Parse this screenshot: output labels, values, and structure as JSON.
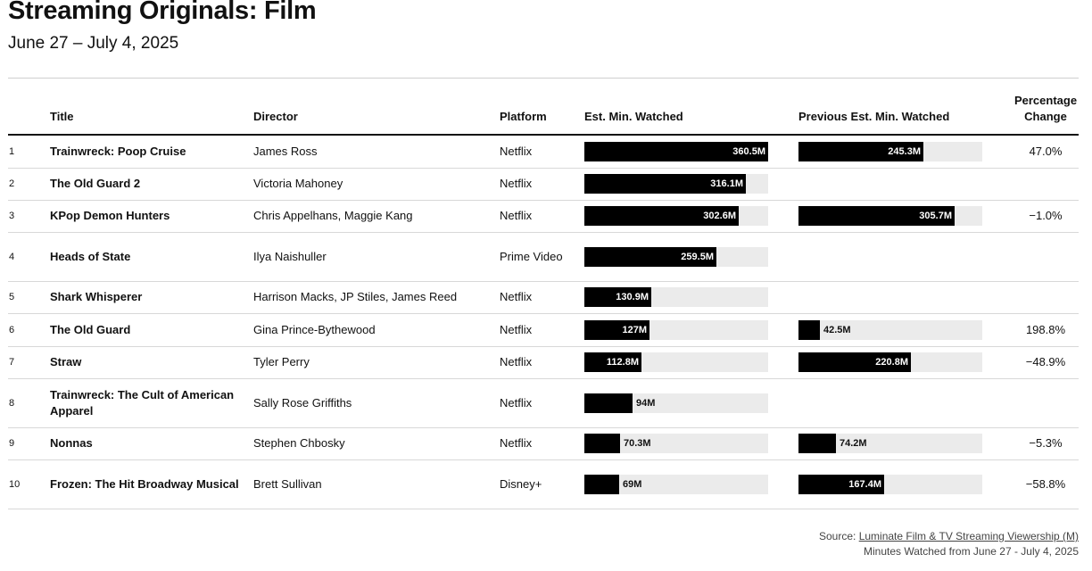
{
  "header": {
    "title": "Streaming Originals: Film",
    "subtitle": "June 27 – July 4, 2025"
  },
  "columns": {
    "title": "Title",
    "director": "Director",
    "platform": "Platform",
    "est": "Est. Min. Watched",
    "prev": "Previous Est. Min. Watched",
    "pct_line1": "Percentage",
    "pct_line2": "Change"
  },
  "footer": {
    "source_prefix": "Source: ",
    "source_link": "Luminate Film & TV Streaming Viewership (M)",
    "note": "Minutes Watched from June 27 - July 4, 2025"
  },
  "chart_data": {
    "type": "table",
    "bar_max": 360.5,
    "colors": {
      "bar": "#000000",
      "track": "#ebebeb"
    },
    "rows": [
      {
        "rank": "1",
        "title": "Trainwreck: Poop Cruise",
        "director": "James Ross",
        "platform": "Netflix",
        "est": 360.5,
        "est_label": "360.5M",
        "prev": 245.3,
        "prev_label": "245.3M",
        "pct": "47.0%"
      },
      {
        "rank": "2",
        "title": "The Old Guard 2",
        "director": "Victoria Mahoney",
        "platform": "Netflix",
        "est": 316.1,
        "est_label": "316.1M",
        "prev": null,
        "prev_label": "",
        "pct": ""
      },
      {
        "rank": "3",
        "title": "KPop Demon Hunters",
        "director": "Chris Appelhans, Maggie Kang",
        "platform": "Netflix",
        "est": 302.6,
        "est_label": "302.6M",
        "prev": 305.7,
        "prev_label": "305.7M",
        "pct": "−1.0%"
      },
      {
        "rank": "4",
        "title": "Heads of State",
        "director": "Ilya Naishuller",
        "platform": "Prime Video",
        "est": 259.5,
        "est_label": "259.5M",
        "prev": null,
        "prev_label": "",
        "pct": ""
      },
      {
        "rank": "5",
        "title": "Shark Whisperer",
        "director": "Harrison Macks, JP Stiles, James Reed",
        "platform": "Netflix",
        "est": 130.9,
        "est_label": "130.9M",
        "prev": null,
        "prev_label": "",
        "pct": ""
      },
      {
        "rank": "6",
        "title": "The Old Guard",
        "director": "Gina Prince-Bythewood",
        "platform": "Netflix",
        "est": 127,
        "est_label": "127M",
        "prev": 42.5,
        "prev_label": "42.5M",
        "pct": "198.8%"
      },
      {
        "rank": "7",
        "title": "Straw",
        "director": "Tyler Perry",
        "platform": "Netflix",
        "est": 112.8,
        "est_label": "112.8M",
        "prev": 220.8,
        "prev_label": "220.8M",
        "pct": "−48.9%"
      },
      {
        "rank": "8",
        "title": "Trainwreck: The Cult of American Apparel",
        "director": "Sally Rose Griffiths",
        "platform": "Netflix",
        "est": 94,
        "est_label": "94M",
        "prev": null,
        "prev_label": "",
        "pct": ""
      },
      {
        "rank": "9",
        "title": "Nonnas",
        "director": "Stephen Chbosky",
        "platform": "Netflix",
        "est": 70.3,
        "est_label": "70.3M",
        "prev": 74.2,
        "prev_label": "74.2M",
        "pct": "−5.3%"
      },
      {
        "rank": "10",
        "title": "Frozen: The Hit Broadway Musical",
        "director": "Brett Sullivan",
        "platform": "Disney+",
        "est": 69,
        "est_label": "69M",
        "prev": 167.4,
        "prev_label": "167.4M",
        "pct": "−58.8%"
      }
    ]
  }
}
